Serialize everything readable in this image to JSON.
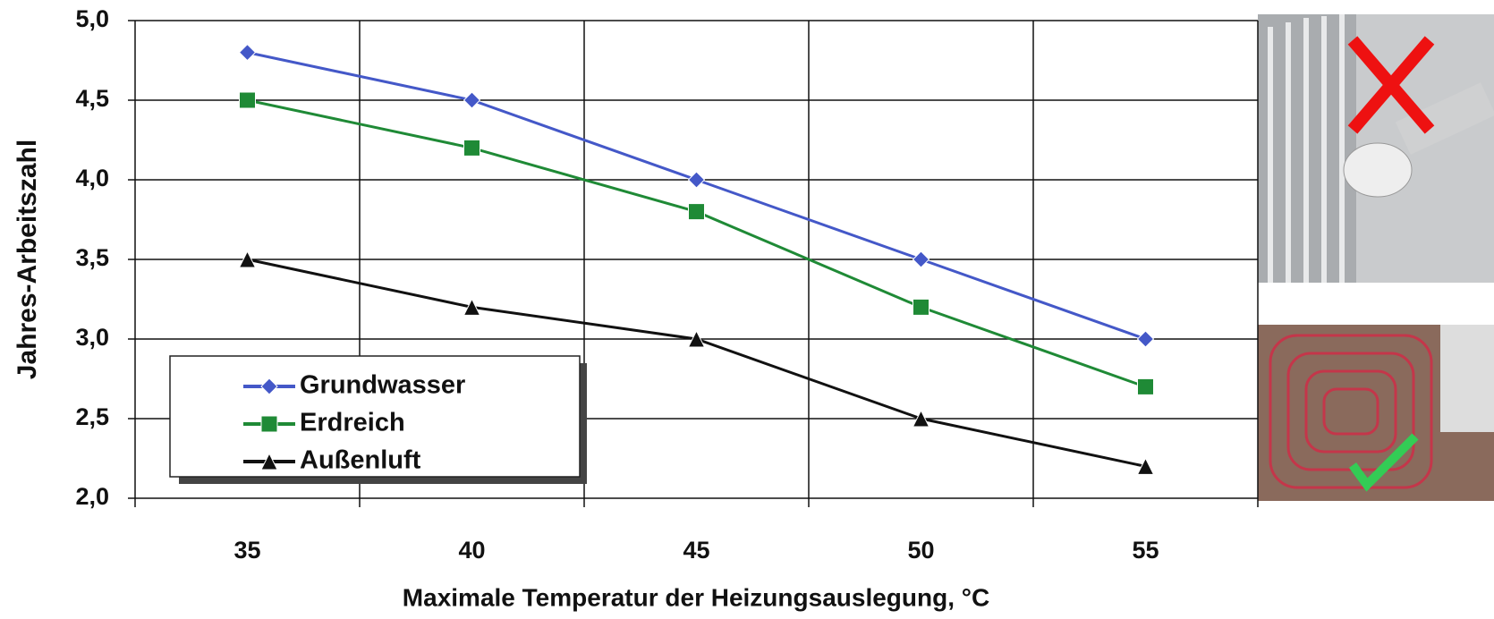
{
  "chart_data": {
    "type": "line",
    "categories": [
      "35",
      "40",
      "45",
      "50",
      "55"
    ],
    "series": [
      {
        "name": "Grundwasser",
        "color": "#4458c8",
        "marker": "diamond",
        "values": [
          4.8,
          4.5,
          4.0,
          3.5,
          3.0
        ]
      },
      {
        "name": "Erdreich",
        "color": "#1f8a36",
        "marker": "square",
        "values": [
          4.5,
          4.2,
          3.8,
          3.2,
          2.7
        ]
      },
      {
        "name": "Außenluft",
        "color": "#111111",
        "marker": "triangle",
        "values": [
          3.5,
          3.2,
          3.0,
          2.5,
          2.2
        ]
      }
    ],
    "ylim": [
      2,
      5
    ],
    "yticks": [
      {
        "value": 2,
        "label": "2,0"
      },
      {
        "value": 2.5,
        "label": "2,5"
      },
      {
        "value": 3,
        "label": "3,0"
      },
      {
        "value": 3.5,
        "label": "3,5"
      },
      {
        "value": 4,
        "label": "4,0"
      },
      {
        "value": 4.5,
        "label": "4,5"
      },
      {
        "value": 5,
        "label": "5,0"
      }
    ],
    "ylabel": "Jahres-Arbeitszahl",
    "xlabel": "Maximale Temperatur der Heizungsauslegung, °C",
    "grid": true,
    "legend": "lower left"
  }
}
